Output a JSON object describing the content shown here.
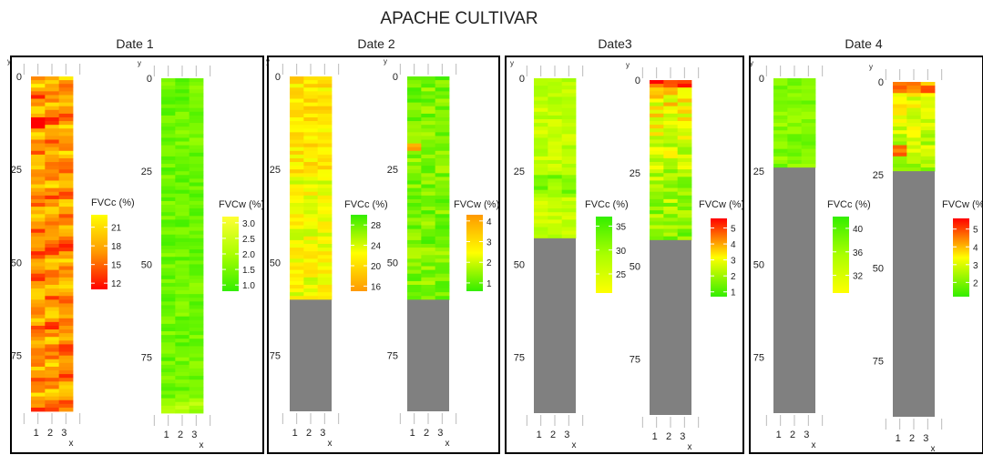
{
  "title": "APACHE CULTIVAR",
  "panel_titles": [
    "Date 1",
    "Date 2",
    "Date3",
    "Date 4"
  ],
  "chart_data": {
    "type": "heatmap",
    "title": "APACHE CULTIVAR",
    "common": {
      "xlabel": "x",
      "ylabel": "y",
      "x_ticks": [
        "1",
        "2",
        "3"
      ],
      "y_ticks": [
        "0",
        "25",
        "50",
        "75"
      ],
      "y_range": [
        0,
        90
      ],
      "columns": 3,
      "no_data_color": "#808080"
    },
    "panels": [
      {
        "date": "Date 1",
        "maps": [
          {
            "legend_title": "FVCc (%)",
            "colorbar_ticks": [
              21,
              18,
              15,
              12
            ],
            "color_range": [
              11,
              23
            ],
            "colors": {
              "low": "#ff0000",
              "mid": "#ff9900",
              "high": "#ffff00"
            },
            "data_rows": 90,
            "profile": "date1-fvcc"
          },
          {
            "legend_title": "FVCw (%)",
            "colorbar_ticks": [
              3.0,
              2.5,
              2.0,
              1.5,
              1.0
            ],
            "color_range": [
              0.8,
              3.2
            ],
            "colors": {
              "low": "#33ee00",
              "mid": "#aaff00",
              "high": "#ffff33"
            },
            "data_rows": 90,
            "profile": "date1-fvcw"
          }
        ]
      },
      {
        "date": "Date 2",
        "maps": [
          {
            "legend_title": "FVCc (%)",
            "colorbar_ticks": [
              28,
              24,
              20,
              16
            ],
            "color_range": [
              15,
              30
            ],
            "colors": {
              "low": "#ff9900",
              "mid": "#ffff00",
              "high": "#33ee00"
            },
            "data_rows": 60,
            "profile": "date2-fvcc"
          },
          {
            "legend_title": "FVCw (%)",
            "colorbar_ticks": [
              4,
              3,
              2,
              1
            ],
            "color_range": [
              0.6,
              4.3
            ],
            "colors": {
              "low": "#33ee00",
              "mid": "#ffff00",
              "high": "#ff9900"
            },
            "data_rows": 60,
            "profile": "date2-fvcw"
          }
        ]
      },
      {
        "date": "Date3",
        "maps": [
          {
            "legend_title": "FVCc (%)",
            "colorbar_ticks": [
              35,
              30,
              25
            ],
            "color_range": [
              21,
              37
            ],
            "colors": {
              "low": "#ffff00",
              "mid": "#aaff00",
              "high": "#33ee00"
            },
            "data_rows": 43,
            "profile": "date3-fvcc"
          },
          {
            "legend_title": "FVCw (%)",
            "colorbar_ticks": [
              5,
              4,
              3,
              2,
              1
            ],
            "color_range": [
              0.7,
              5.6
            ],
            "colors": {
              "low": "#33ee00",
              "mid": "#ffff00",
              "high": "#ff0000"
            },
            "data_rows": 43,
            "profile": "date3-fvcw"
          }
        ]
      },
      {
        "date": "Date 4",
        "maps": [
          {
            "legend_title": "FVCc (%)",
            "colorbar_ticks": [
              40,
              36,
              32
            ],
            "color_range": [
              29,
              42
            ],
            "colors": {
              "low": "#ffff00",
              "mid": "#aaff00",
              "high": "#33ee00"
            },
            "data_rows": 24,
            "profile": "date4-fvcc"
          },
          {
            "legend_title": "FVCw (%)",
            "colorbar_ticks": [
              5,
              4,
              3,
              2
            ],
            "color_range": [
              1.2,
              5.6
            ],
            "colors": {
              "low": "#33ee00",
              "mid": "#ffff00",
              "high": "#ff0000"
            },
            "data_rows": 24,
            "profile": "date4-fvcw"
          }
        ]
      }
    ]
  }
}
